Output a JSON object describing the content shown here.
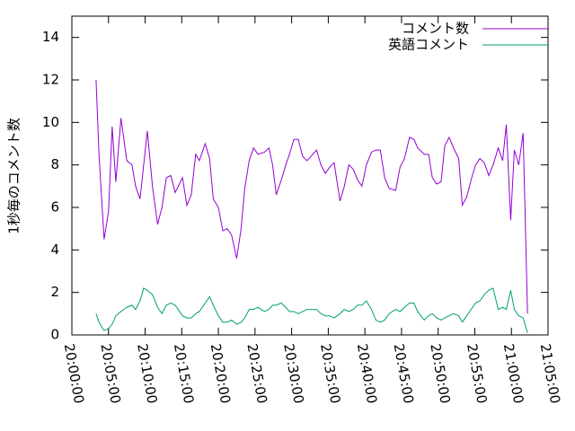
{
  "chart_data": {
    "type": "line",
    "ylabel": "1秒毎のコメント数",
    "x": [
      3.3,
      3.7,
      4.4,
      5.0,
      5.5,
      6.0,
      6.7,
      7.5,
      8.2,
      8.7,
      9.3,
      9.8,
      10.3,
      11.0,
      11.7,
      12.3,
      12.9,
      13.5,
      14.1,
      15.1,
      15.7,
      16.3,
      16.9,
      17.4,
      18.2,
      18.8,
      19.3,
      20.0,
      20.6,
      21.2,
      21.8,
      22.5,
      23.1,
      23.6,
      24.2,
      24.8,
      25.4,
      26.3,
      26.9,
      27.4,
      27.9,
      28.6,
      29.2,
      29.7,
      30.3,
      30.9,
      31.5,
      32.1,
      32.9,
      33.4,
      34.0,
      34.6,
      35.2,
      35.8,
      36.6,
      37.2,
      37.8,
      38.4,
      39.0,
      39.6,
      40.2,
      40.9,
      41.5,
      42.1,
      42.7,
      43.3,
      44.2,
      44.8,
      45.4,
      46.1,
      46.7,
      47.2,
      48.1,
      48.7,
      49.2,
      49.8,
      50.4,
      50.9,
      51.5,
      52.1,
      52.8,
      53.3,
      53.9,
      54.5,
      55.1,
      55.7,
      56.3,
      56.9,
      57.5,
      58.2,
      58.8,
      59.3,
      59.9,
      60.4,
      61.0,
      61.6,
      62.2
    ],
    "series": [
      {
        "name": "コメント数",
        "color": "#9400d3",
        "values": [
          12.0,
          8.5,
          4.5,
          5.8,
          9.8,
          7.2,
          10.2,
          8.2,
          8.0,
          7.0,
          6.4,
          8.0,
          9.6,
          7.0,
          5.2,
          6.0,
          7.4,
          7.5,
          6.7,
          7.4,
          6.1,
          6.6,
          8.5,
          8.2,
          9.0,
          8.3,
          6.4,
          6.0,
          4.9,
          5.0,
          4.7,
          3.6,
          5.0,
          6.9,
          8.2,
          8.8,
          8.5,
          8.6,
          8.8,
          8.0,
          6.6,
          7.3,
          8.0,
          8.5,
          9.2,
          9.2,
          8.4,
          8.2,
          8.5,
          8.7,
          8.0,
          7.6,
          7.9,
          8.1,
          6.3,
          7.0,
          8.0,
          7.8,
          7.3,
          7.0,
          8.0,
          8.6,
          8.7,
          8.7,
          7.4,
          6.9,
          6.8,
          7.9,
          8.3,
          9.3,
          9.2,
          8.8,
          8.5,
          8.5,
          7.4,
          7.1,
          7.2,
          8.9,
          9.3,
          8.8,
          8.3,
          6.1,
          6.5,
          7.3,
          8.0,
          8.3,
          8.1,
          7.5,
          8.0,
          8.8,
          8.2,
          9.9,
          5.4,
          8.7,
          8.0,
          9.5,
          1.0
        ]
      },
      {
        "name": "英語コメント",
        "color": "#009e73",
        "values": [
          1.0,
          0.6,
          0.2,
          0.3,
          0.5,
          0.9,
          1.1,
          1.3,
          1.4,
          1.2,
          1.6,
          2.2,
          2.1,
          1.9,
          1.3,
          1.0,
          1.4,
          1.5,
          1.4,
          0.9,
          0.8,
          0.8,
          1.0,
          1.1,
          1.5,
          1.8,
          1.4,
          0.9,
          0.6,
          0.6,
          0.7,
          0.5,
          0.6,
          0.8,
          1.2,
          1.2,
          1.3,
          1.1,
          1.2,
          1.4,
          1.4,
          1.5,
          1.3,
          1.1,
          1.1,
          1.0,
          1.1,
          1.2,
          1.2,
          1.2,
          1.0,
          0.9,
          0.9,
          0.8,
          1.0,
          1.2,
          1.1,
          1.2,
          1.4,
          1.4,
          1.6,
          1.2,
          0.7,
          0.6,
          0.7,
          1.0,
          1.2,
          1.1,
          1.3,
          1.5,
          1.5,
          1.1,
          0.7,
          0.9,
          1.0,
          0.8,
          0.7,
          0.8,
          0.9,
          1.0,
          0.9,
          0.6,
          0.9,
          1.2,
          1.5,
          1.6,
          1.9,
          2.1,
          2.2,
          1.2,
          1.3,
          1.2,
          2.1,
          1.2,
          0.9,
          0.8,
          0.1
        ]
      }
    ],
    "xlim": [
      0,
      65
    ],
    "xticks": [
      {
        "value": 0,
        "label": "20:00:00"
      },
      {
        "value": 5,
        "label": "20:05:00"
      },
      {
        "value": 10,
        "label": "20:10:00"
      },
      {
        "value": 15,
        "label": "20:15:00"
      },
      {
        "value": 20,
        "label": "20:20:00"
      },
      {
        "value": 25,
        "label": "20:25:00"
      },
      {
        "value": 30,
        "label": "20:30:00"
      },
      {
        "value": 35,
        "label": "20:35:00"
      },
      {
        "value": 40,
        "label": "20:40:00"
      },
      {
        "value": 45,
        "label": "20:45:00"
      },
      {
        "value": 50,
        "label": "20:50:00"
      },
      {
        "value": 55,
        "label": "20:55:00"
      },
      {
        "value": 60,
        "label": "21:00:00"
      },
      {
        "value": 65,
        "label": "21:05:00"
      }
    ],
    "ylim": [
      0,
      15
    ],
    "yticks": [
      0,
      2,
      4,
      6,
      8,
      10,
      12,
      14
    ],
    "legend": "top-right"
  }
}
